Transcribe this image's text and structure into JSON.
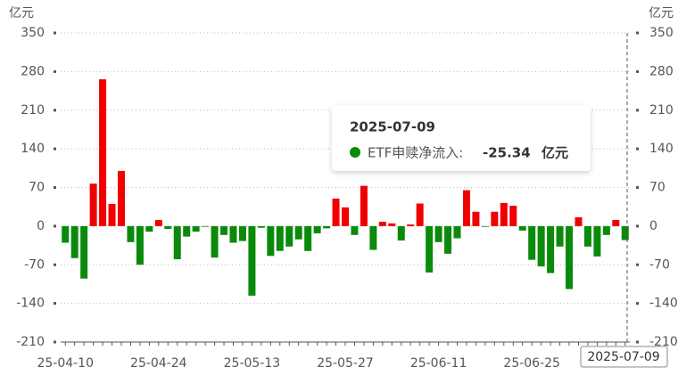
{
  "chart_data": {
    "type": "bar",
    "y_label": "亿元",
    "y2_label": "亿元",
    "categories": [
      "25-04-10",
      null,
      null,
      null,
      null,
      null,
      null,
      null,
      null,
      null,
      "25-04-24",
      null,
      null,
      null,
      null,
      null,
      null,
      null,
      null,
      null,
      "25-05-13",
      null,
      null,
      null,
      null,
      null,
      null,
      null,
      null,
      null,
      "25-05-27",
      null,
      null,
      null,
      null,
      null,
      null,
      null,
      null,
      null,
      "25-06-11",
      null,
      null,
      null,
      null,
      null,
      null,
      null,
      null,
      null,
      "25-06-25",
      null,
      null,
      null,
      null,
      null,
      null,
      null,
      null,
      null,
      "2025-07-09"
    ],
    "series": [
      {
        "name": "ETF申赎净流入:",
        "unit": "亿元",
        "values": [
          -30,
          -58,
          -95,
          77,
          266,
          40,
          100,
          -29,
          -70,
          -10,
          11,
          -5,
          -60,
          -19,
          -10,
          -1,
          -57,
          -16,
          -30,
          -27,
          -126,
          -3,
          -54,
          -45,
          -37,
          -24,
          -45,
          -13,
          -4,
          50,
          34,
          -16,
          73,
          -43,
          8,
          5,
          -26,
          3,
          41,
          -84,
          -29,
          -50,
          -22,
          65,
          26,
          -1,
          26,
          42,
          37,
          -8,
          -61,
          -73,
          -85,
          -37,
          -114,
          16,
          -37,
          -55,
          -16,
          11,
          -25.34
        ]
      }
    ],
    "positive_color": "#f00000",
    "negative_color": "#0a8a0a",
    "ylim": [
      -210,
      350
    ],
    "yticks": [
      -210,
      -140,
      -70,
      0,
      70,
      140,
      210,
      280,
      350
    ],
    "y2lim": [
      -210,
      350
    ],
    "y2ticks": [
      -210,
      -140,
      -70,
      0,
      70,
      140,
      210,
      280,
      350
    ],
    "grid": true,
    "highlight_index": 60
  }
}
